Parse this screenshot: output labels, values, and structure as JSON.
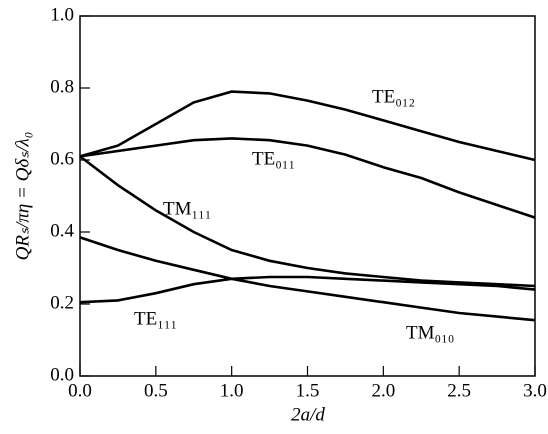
{
  "chart_data": {
    "type": "line",
    "xlabel": "2a/d",
    "ylabel": "QRₛ/πη = Qδₛ/λ₀",
    "x": [
      0,
      0.25,
      0.5,
      0.75,
      1.0,
      1.25,
      1.5,
      1.75,
      2.0,
      2.25,
      2.5,
      2.75,
      3.0
    ],
    "series": [
      {
        "name": "TE₀₁₂",
        "color": "#000000",
        "values": [
          0.61,
          0.64,
          0.7,
          0.76,
          0.79,
          0.785,
          0.765,
          0.74,
          0.71,
          0.68,
          0.65,
          0.625,
          0.6
        ]
      },
      {
        "name": "TE₀₁₁",
        "color": "#000000",
        "values": [
          0.61,
          0.625,
          0.64,
          0.655,
          0.66,
          0.655,
          0.64,
          0.615,
          0.58,
          0.55,
          0.51,
          0.475,
          0.44
        ]
      },
      {
        "name": "TM₁₁₁",
        "color": "#000000",
        "values": [
          0.61,
          0.53,
          0.46,
          0.4,
          0.35,
          0.32,
          0.3,
          0.285,
          0.275,
          0.265,
          0.26,
          0.255,
          0.25
        ]
      },
      {
        "name": "TE₁₁₁",
        "color": "#000000",
        "values": [
          0.205,
          0.21,
          0.23,
          0.255,
          0.27,
          0.275,
          0.275,
          0.27,
          0.265,
          0.26,
          0.255,
          0.25,
          0.24
        ]
      },
      {
        "name": "TM₀₁₀",
        "color": "#000000",
        "values": [
          0.385,
          0.35,
          0.32,
          0.295,
          0.27,
          0.25,
          0.235,
          0.22,
          0.205,
          0.19,
          0.175,
          0.165,
          0.155
        ]
      }
    ],
    "xlim": [
      0,
      3
    ],
    "ylim": [
      0,
      1
    ],
    "xticks": [
      {
        "value": 0,
        "label": "0.0"
      },
      0.5,
      {
        "value": 1,
        "label": "1.0"
      },
      1.5,
      {
        "value": 2,
        "label": "2.0"
      },
      2.5,
      {
        "value": 3,
        "label": "3.0"
      }
    ],
    "yticks": [
      {
        "value": 0,
        "label": "0.0"
      },
      0.2,
      0.4,
      0.6,
      0.8,
      {
        "value": 1,
        "label": "1.0"
      }
    ]
  }
}
